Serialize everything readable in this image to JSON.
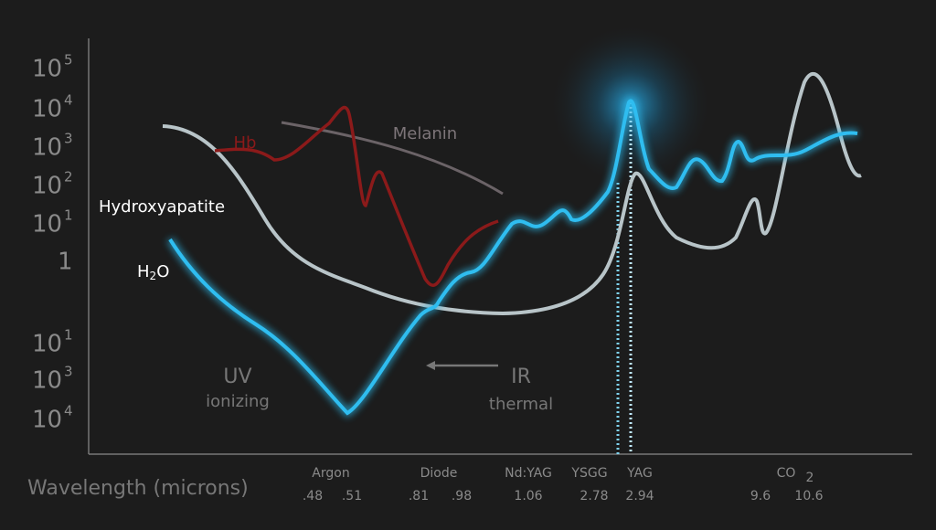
{
  "y_axis": {
    "labels": [
      {
        "base": "10",
        "exp": "5"
      },
      {
        "base": "10",
        "exp": "4"
      },
      {
        "base": "10",
        "exp": "3"
      },
      {
        "base": "10",
        "exp": "2"
      },
      {
        "base": "10",
        "exp": "1"
      },
      {
        "base": "1",
        "exp": ""
      },
      {
        "base": "10",
        "exp": "1"
      },
      {
        "base": "10",
        "exp": "3"
      },
      {
        "base": "10",
        "exp": "4"
      }
    ]
  },
  "x_axis": {
    "title": "Wavelength (microns)",
    "groups": [
      {
        "name": "Argon",
        "values": [
          ".48",
          ".51"
        ]
      },
      {
        "name": "Diode",
        "values": [
          ".81",
          ".98"
        ]
      },
      {
        "name": "Nd:YAG",
        "values": [
          "1.06"
        ]
      },
      {
        "name": "YSGG",
        "values": [
          "2.78"
        ]
      },
      {
        "name": "YAG",
        "values": [
          "2.94"
        ]
      },
      {
        "name": "CO",
        "sub": "2",
        "values": [
          "9.6",
          "10.6"
        ]
      }
    ]
  },
  "series_labels": {
    "hb": "Hb",
    "melanin": "Melanin",
    "hydroxyapatite": "Hydroxyapatite",
    "h2o": "H",
    "h2o_sub": "2",
    "h2o_end": "O"
  },
  "annotations": {
    "uv": "UV",
    "uv_sub": "ionizing",
    "ir": "IR",
    "ir_sub": "thermal"
  }
}
